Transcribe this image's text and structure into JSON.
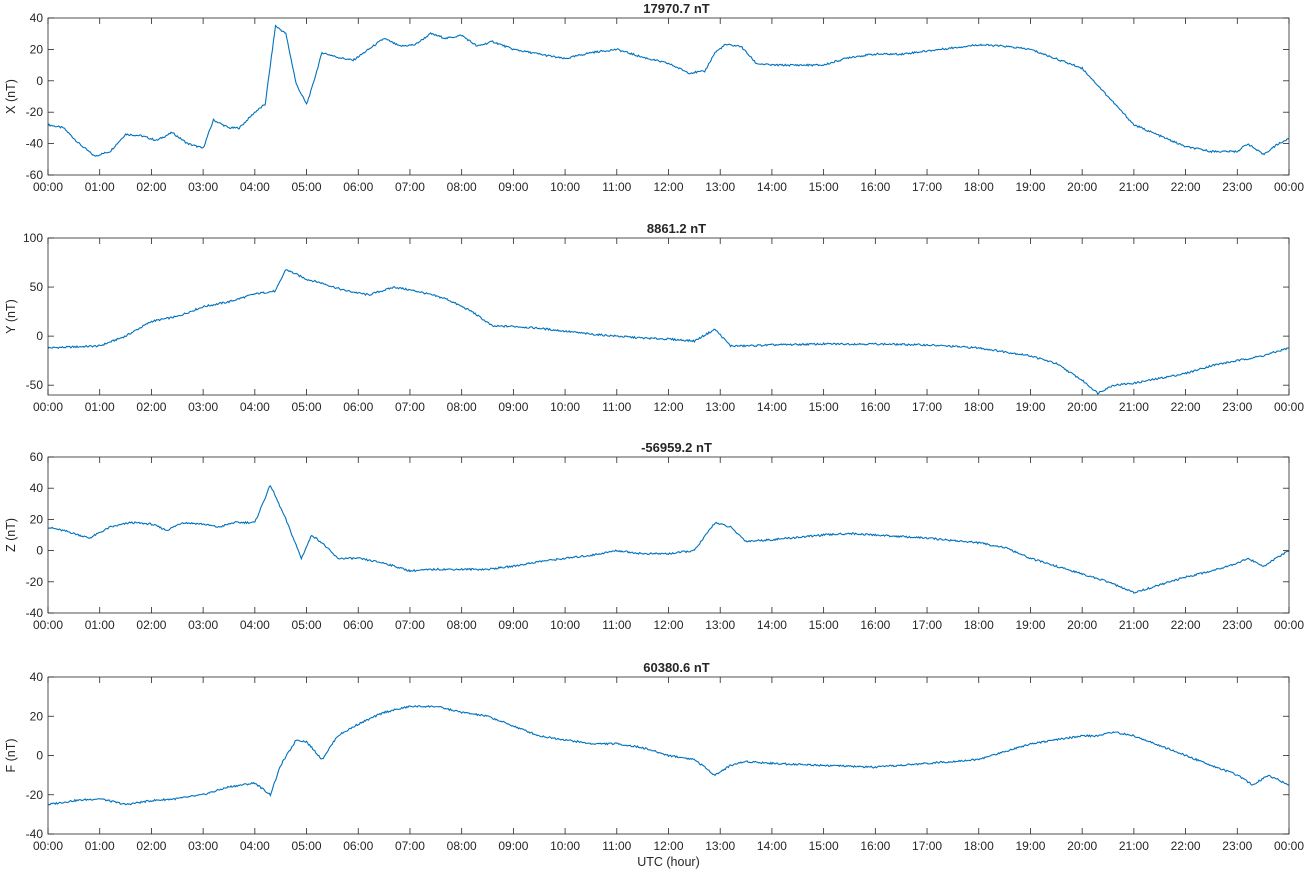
{
  "figure": {
    "xlabel": "UTC (hour)",
    "line_color": "#0072bd",
    "x_ticks": [
      "00:00",
      "01:00",
      "02:00",
      "03:00",
      "04:00",
      "05:00",
      "06:00",
      "07:00",
      "08:00",
      "09:00",
      "10:00",
      "11:00",
      "12:00",
      "13:00",
      "14:00",
      "15:00",
      "16:00",
      "17:00",
      "18:00",
      "19:00",
      "20:00",
      "21:00",
      "22:00",
      "23:00",
      "00:00"
    ]
  },
  "chart_data": [
    {
      "type": "line",
      "title": "17970.7 nT",
      "ylabel": "X (nT)",
      "xlim": [
        0,
        24
      ],
      "ylim": [
        -60,
        40
      ],
      "yticks": [
        -60,
        -40,
        -20,
        0,
        20,
        40
      ],
      "x": [
        0,
        0.3,
        0.6,
        0.9,
        1.2,
        1.5,
        1.8,
        2.1,
        2.4,
        2.7,
        3.0,
        3.2,
        3.5,
        3.7,
        4.0,
        4.2,
        4.4,
        4.6,
        4.8,
        5.0,
        5.1,
        5.3,
        5.6,
        5.9,
        6.2,
        6.5,
        6.8,
        7.1,
        7.4,
        7.7,
        8.0,
        8.3,
        8.6,
        9.0,
        9.5,
        10.0,
        10.5,
        11.0,
        11.5,
        12.0,
        12.4,
        12.7,
        12.9,
        13.1,
        13.4,
        13.7,
        14.0,
        14.5,
        15.0,
        15.5,
        16.0,
        16.5,
        17.0,
        17.5,
        18.0,
        18.5,
        19.0,
        19.5,
        20.0,
        20.5,
        21.0,
        21.5,
        22.0,
        22.5,
        23.0,
        23.2,
        23.5,
        23.8,
        24.0
      ],
      "y": [
        -28,
        -30,
        -40,
        -48,
        -45,
        -34,
        -35,
        -38,
        -33,
        -40,
        -43,
        -25,
        -30,
        -30,
        -20,
        -15,
        35,
        30,
        -2,
        -15,
        -5,
        18,
        15,
        13,
        20,
        27,
        22,
        23,
        30,
        27,
        29,
        22,
        25,
        20,
        17,
        14,
        18,
        20,
        15,
        11,
        5,
        6,
        18,
        23,
        22,
        11,
        10,
        10,
        10,
        15,
        17,
        17,
        19,
        21,
        23,
        22,
        20,
        14,
        8,
        -10,
        -28,
        -35,
        -42,
        -45,
        -45,
        -40,
        -47,
        -40,
        -37
      ]
    },
    {
      "type": "line",
      "title": "8861.2 nT",
      "ylabel": "Y (nT)",
      "xlim": [
        0,
        24
      ],
      "ylim": [
        -60,
        100
      ],
      "yticks": [
        -50,
        0,
        50,
        100
      ],
      "x": [
        0,
        0.5,
        1.0,
        1.5,
        2.0,
        2.5,
        3.0,
        3.5,
        4.0,
        4.4,
        4.6,
        5.0,
        5.3,
        5.7,
        6.2,
        6.7,
        7.2,
        7.7,
        8.2,
        8.6,
        9.0,
        9.5,
        10.0,
        10.5,
        11.0,
        11.5,
        12.0,
        12.5,
        12.9,
        13.2,
        13.5,
        14.0,
        15.0,
        16.0,
        17.0,
        18.0,
        19.0,
        19.5,
        20.0,
        20.3,
        20.6,
        21.0,
        21.5,
        22.0,
        22.5,
        23.0,
        23.5,
        24.0
      ],
      "y": [
        -12,
        -11,
        -10,
        0,
        15,
        20,
        30,
        35,
        43,
        46,
        68,
        58,
        54,
        47,
        42,
        50,
        45,
        38,
        25,
        10,
        10,
        8,
        5,
        2,
        0,
        -2,
        -3,
        -5,
        7,
        -10,
        -10,
        -9,
        -8,
        -8,
        -9,
        -12,
        -20,
        -28,
        -45,
        -58,
        -50,
        -48,
        -43,
        -38,
        -30,
        -25,
        -20,
        -12
      ]
    },
    {
      "type": "line",
      "title": "-56959.2 nT",
      "ylabel": "Z (nT)",
      "xlim": [
        0,
        24
      ],
      "ylim": [
        -40,
        60
      ],
      "yticks": [
        -40,
        -20,
        0,
        20,
        40,
        60
      ],
      "x": [
        0,
        0.4,
        0.8,
        1.2,
        1.6,
        2.0,
        2.3,
        2.6,
        3.0,
        3.3,
        3.6,
        4.0,
        4.3,
        4.6,
        4.9,
        5.1,
        5.3,
        5.6,
        6.0,
        6.5,
        7.0,
        7.5,
        8.0,
        8.5,
        9.0,
        9.5,
        10.0,
        10.5,
        11.0,
        11.5,
        12.0,
        12.5,
        12.9,
        13.2,
        13.5,
        14.0,
        15.0,
        15.5,
        16.0,
        17.0,
        18.0,
        18.5,
        19.0,
        19.5,
        20.0,
        20.5,
        21.0,
        21.5,
        22.0,
        22.5,
        23.0,
        23.2,
        23.5,
        24.0
      ],
      "y": [
        15,
        12,
        8,
        15,
        18,
        17,
        13,
        18,
        17,
        15,
        18,
        18,
        42,
        20,
        -5,
        10,
        5,
        -5,
        -5,
        -8,
        -13,
        -12,
        -12,
        -12,
        -10,
        -7,
        -5,
        -3,
        0,
        -2,
        -2,
        0,
        18,
        15,
        6,
        7,
        10,
        11,
        10,
        8,
        5,
        2,
        -5,
        -10,
        -15,
        -20,
        -27,
        -22,
        -17,
        -13,
        -8,
        -5,
        -10,
        0
      ]
    },
    {
      "type": "line",
      "title": "60380.6 nT",
      "ylabel": "F (nT)",
      "xlim": [
        0,
        24
      ],
      "ylim": [
        -40,
        40
      ],
      "yticks": [
        -40,
        -20,
        0,
        20,
        40
      ],
      "x": [
        0,
        0.5,
        1.0,
        1.5,
        2.0,
        2.5,
        3.0,
        3.5,
        4.0,
        4.3,
        4.5,
        4.8,
        5.0,
        5.3,
        5.6,
        6.0,
        6.5,
        7.0,
        7.5,
        8.0,
        8.5,
        9.0,
        9.5,
        10.0,
        10.5,
        11.0,
        11.5,
        12.0,
        12.5,
        12.9,
        13.2,
        13.5,
        14.0,
        15.0,
        16.0,
        17.0,
        18.0,
        18.5,
        19.0,
        19.5,
        20.0,
        20.3,
        20.6,
        21.0,
        21.5,
        22.0,
        22.5,
        23.0,
        23.3,
        23.6,
        24.0
      ],
      "y": [
        -25,
        -23,
        -22,
        -25,
        -23,
        -22,
        -20,
        -16,
        -14,
        -20,
        -5,
        8,
        7,
        -2,
        10,
        16,
        22,
        25,
        25,
        22,
        20,
        15,
        10,
        8,
        6,
        6,
        4,
        0,
        -2,
        -10,
        -5,
        -3,
        -4,
        -5,
        -6,
        -4,
        -2,
        2,
        6,
        8,
        10,
        10,
        12,
        10,
        5,
        0,
        -5,
        -10,
        -15,
        -10,
        -15
      ]
    }
  ]
}
